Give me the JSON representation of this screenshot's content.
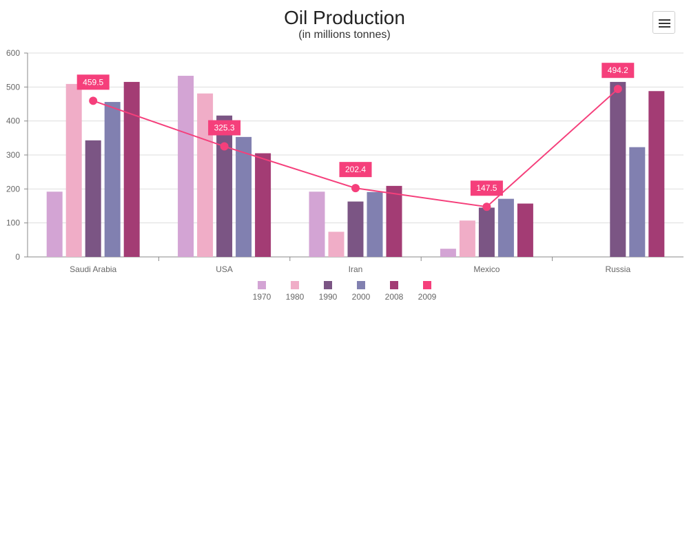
{
  "title": "Oil Production",
  "subtitle": "(in millions tonnes)",
  "menu_icon": "hamburger-menu-icon",
  "chart_data": {
    "type": "bar",
    "categories": [
      "Saudi Arabia",
      "USA",
      "Iran",
      "Mexico",
      "Russia"
    ],
    "ylim": [
      0,
      600
    ],
    "yticks": [
      0,
      100,
      200,
      300,
      400,
      500,
      600
    ],
    "grid": true,
    "legend_position": "bottom-center",
    "series": [
      {
        "name": "1970",
        "type": "bar",
        "color": "#d3a4d4",
        "values": [
          192,
          533,
          192,
          24,
          null
        ]
      },
      {
        "name": "1980",
        "type": "bar",
        "color": "#f0adc7",
        "values": [
          509,
          481,
          74,
          107,
          null
        ]
      },
      {
        "name": "1990",
        "type": "bar",
        "color": "#7b5584",
        "values": [
          343,
          416,
          163,
          145,
          515
        ]
      },
      {
        "name": "2000",
        "type": "bar",
        "color": "#8180b0",
        "values": [
          456,
          353,
          191,
          171,
          323
        ]
      },
      {
        "name": "2008",
        "type": "bar",
        "color": "#a33c74",
        "values": [
          515,
          305,
          209,
          157,
          488
        ]
      },
      {
        "name": "2009",
        "type": "line",
        "color": "#f53f7b",
        "values": [
          459.5,
          325.3,
          202.4,
          147.5,
          494.2
        ],
        "labels": [
          "459.5",
          "325.3",
          "202.4",
          "147.5",
          "494.2"
        ]
      }
    ]
  }
}
